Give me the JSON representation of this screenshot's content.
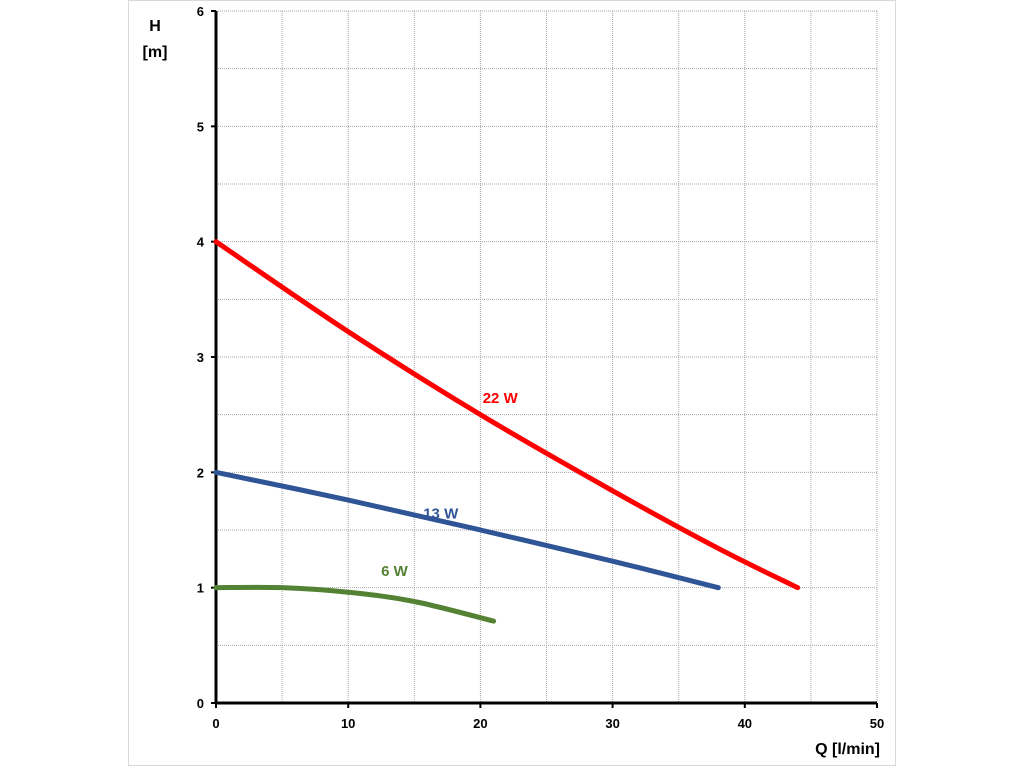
{
  "chart_data": {
    "type": "line",
    "title": "",
    "xlabel": "Q [l/min]",
    "ylabel_line1": "H",
    "ylabel_line2": "[m]",
    "xlim": [
      0,
      50
    ],
    "ylim": [
      0,
      6
    ],
    "x_ticks": [
      0,
      10,
      20,
      30,
      40,
      50
    ],
    "y_ticks": [
      0,
      1,
      2,
      3,
      4,
      5,
      6
    ],
    "x_minor_step": 5,
    "y_minor_step": 0.5,
    "grid": true,
    "series": [
      {
        "name": "22 W",
        "color": "#ff0000",
        "label_at": [
          21.5,
          2.6
        ],
        "points": [
          [
            0,
            4.0
          ],
          [
            10,
            3.22
          ],
          [
            20,
            2.5
          ],
          [
            30,
            1.84
          ],
          [
            38,
            1.34
          ],
          [
            44,
            1.0
          ]
        ]
      },
      {
        "name": "13 W",
        "color": "#2f5597",
        "label_at": [
          17,
          1.6
        ],
        "points": [
          [
            0,
            2.0
          ],
          [
            10,
            1.76
          ],
          [
            20,
            1.5
          ],
          [
            30,
            1.23
          ],
          [
            38,
            1.0
          ]
        ]
      },
      {
        "name": "6 W",
        "color": "#548235",
        "label_at": [
          13.5,
          1.1
        ],
        "points": [
          [
            0,
            1.0
          ],
          [
            5,
            1.0
          ],
          [
            10,
            0.96
          ],
          [
            15,
            0.88
          ],
          [
            21,
            0.71
          ]
        ]
      }
    ]
  }
}
